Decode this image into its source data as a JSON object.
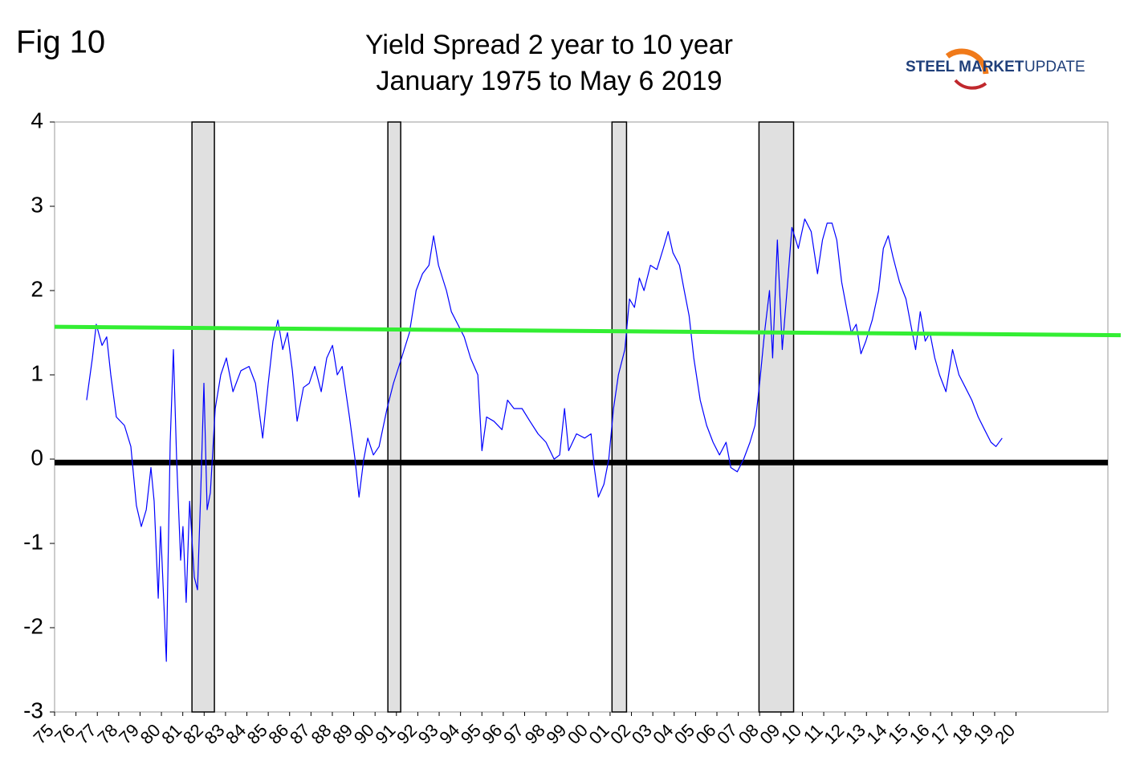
{
  "chart_data": {
    "type": "line",
    "figure_label": "Fig 10",
    "title": "Yield Spread 2 year to 10 year",
    "subtitle": "January 1975 to May 6 2019",
    "logo": {
      "bold": "STEEL MARKET",
      "text": "UPDATE"
    },
    "xlim": [
      1975,
      2024.3
    ],
    "ylim": [
      -3,
      4
    ],
    "yticks": [
      -3,
      -2,
      -1,
      0,
      1,
      2,
      3,
      4
    ],
    "xticks": [
      {
        "value": 1975,
        "label": "75"
      },
      {
        "value": 1976,
        "label": "76"
      },
      {
        "value": 1977,
        "label": "77"
      },
      {
        "value": 1978,
        "label": "78"
      },
      {
        "value": 1979,
        "label": "79"
      },
      {
        "value": 1980,
        "label": "80"
      },
      {
        "value": 1981,
        "label": "81"
      },
      {
        "value": 1982,
        "label": "82"
      },
      {
        "value": 1983,
        "label": "83"
      },
      {
        "value": 1984,
        "label": "84"
      },
      {
        "value": 1985,
        "label": "85"
      },
      {
        "value": 1986,
        "label": "86"
      },
      {
        "value": 1987,
        "label": "87"
      },
      {
        "value": 1988,
        "label": "88"
      },
      {
        "value": 1989,
        "label": "89"
      },
      {
        "value": 1990,
        "label": "90"
      },
      {
        "value": 1991,
        "label": "91"
      },
      {
        "value": 1992,
        "label": "92"
      },
      {
        "value": 1993,
        "label": "93"
      },
      {
        "value": 1994,
        "label": "94"
      },
      {
        "value": 1995,
        "label": "95"
      },
      {
        "value": 1996,
        "label": "96"
      },
      {
        "value": 1997,
        "label": "97"
      },
      {
        "value": 1998,
        "label": "98"
      },
      {
        "value": 1999,
        "label": "99"
      },
      {
        "value": 2000,
        "label": "00"
      },
      {
        "value": 2001,
        "label": "01"
      },
      {
        "value": 2002,
        "label": "02"
      },
      {
        "value": 2003,
        "label": "03"
      },
      {
        "value": 2004,
        "label": "04"
      },
      {
        "value": 2005,
        "label": "05"
      },
      {
        "value": 2006,
        "label": "06"
      },
      {
        "value": 2007,
        "label": "07"
      },
      {
        "value": 2008,
        "label": "08"
      },
      {
        "value": 2009,
        "label": "09"
      },
      {
        "value": 2010,
        "label": "10"
      },
      {
        "value": 2011,
        "label": "11"
      },
      {
        "value": 2012,
        "label": "12"
      },
      {
        "value": 2013,
        "label": "13"
      },
      {
        "value": 2014,
        "label": "14"
      },
      {
        "value": 2015,
        "label": "15"
      },
      {
        "value": 2016,
        "label": "16"
      },
      {
        "value": 2017,
        "label": "17"
      },
      {
        "value": 2018,
        "label": "18"
      },
      {
        "value": 2019,
        "label": "19"
      },
      {
        "value": 2020,
        "label": "20"
      }
    ],
    "bands": [
      {
        "start": 1981.43,
        "end": 1982.48,
        "color": "#e0e0e0"
      },
      {
        "start": 1990.6,
        "end": 1991.2,
        "color": "#e0e0e0"
      },
      {
        "start": 2001.09,
        "end": 2001.77,
        "color": "#e0e0e0"
      },
      {
        "start": 2007.97,
        "end": 2009.59,
        "color": "#e0e0e0"
      }
    ],
    "reference_line": {
      "value": -0.04,
      "color": "#000000"
    },
    "trend": {
      "x": [
        1975,
        2024.9
      ],
      "values": [
        1.57,
        1.47
      ],
      "color": "#33ee33"
    },
    "series": [
      {
        "color": "#0000ff",
        "x": [
          1976.5,
          1976.77,
          1976.95,
          1977.22,
          1977.44,
          1977.63,
          1977.89,
          1978.27,
          1978.57,
          1978.83,
          1979.06,
          1979.29,
          1979.51,
          1979.66,
          1979.85,
          1979.96,
          1980.23,
          1980.41,
          1980.56,
          1980.71,
          1980.9,
          1981.01,
          1981.16,
          1981.32,
          1981.54,
          1981.69,
          1981.84,
          1981.99,
          1982.14,
          1982.29,
          1982.52,
          1982.78,
          1983.04,
          1983.35,
          1983.72,
          1984.1,
          1984.4,
          1984.74,
          1985.0,
          1985.22,
          1985.45,
          1985.68,
          1985.9,
          1986.13,
          1986.35,
          1986.65,
          1986.92,
          1987.18,
          1987.48,
          1987.74,
          1988.01,
          1988.23,
          1988.46,
          1988.8,
          1989.06,
          1989.25,
          1989.47,
          1989.66,
          1989.92,
          1990.19,
          1990.56,
          1990.86,
          1991.24,
          1991.61,
          1991.92,
          1992.22,
          1992.52,
          1992.74,
          1992.97,
          1993.34,
          1993.57,
          1993.87,
          1994.17,
          1994.47,
          1994.81,
          1995.0,
          1995.22,
          1995.56,
          1995.94,
          1996.2,
          1996.5,
          1996.88,
          1997.25,
          1997.63,
          1998.0,
          1998.38,
          1998.64,
          1998.87,
          1999.06,
          1999.43,
          1999.81,
          2000.11,
          2000.26,
          2000.45,
          2000.71,
          2000.94,
          2001.16,
          2001.39,
          2001.69,
          2001.91,
          2002.14,
          2002.37,
          2002.59,
          2002.89,
          2003.19,
          2003.49,
          2003.72,
          2003.94,
          2004.25,
          2004.47,
          2004.7,
          2004.92,
          2005.22,
          2005.52,
          2005.82,
          2006.12,
          2006.43,
          2006.65,
          2006.95,
          2007.25,
          2007.55,
          2007.78,
          2008.0,
          2008.23,
          2008.46,
          2008.61,
          2008.83,
          2009.06,
          2009.28,
          2009.51,
          2009.81,
          2010.11,
          2010.41,
          2010.71,
          2010.94,
          2011.16,
          2011.39,
          2011.61,
          2011.84,
          2012.06,
          2012.29,
          2012.52,
          2012.74,
          2012.97,
          2013.27,
          2013.57,
          2013.79,
          2014.02,
          2014.24,
          2014.55,
          2014.85,
          2015.07,
          2015.3,
          2015.52,
          2015.75,
          2015.97,
          2016.2,
          2016.42,
          2016.72,
          2017.03,
          2017.33,
          2017.63,
          2017.93,
          2018.23,
          2018.53,
          2018.83,
          2019.06,
          2019.35
        ],
        "values": [
          0.7,
          1.2,
          1.6,
          1.35,
          1.45,
          1.0,
          0.5,
          0.4,
          0.15,
          -0.55,
          -0.8,
          -0.6,
          -0.1,
          -0.5,
          -1.65,
          -0.8,
          -2.4,
          0.2,
          1.3,
          0.0,
          -1.2,
          -0.8,
          -1.7,
          -0.5,
          -1.4,
          -1.55,
          -0.4,
          0.9,
          -0.6,
          -0.4,
          0.6,
          1.0,
          1.2,
          0.8,
          1.05,
          1.1,
          0.9,
          0.25,
          0.9,
          1.4,
          1.65,
          1.3,
          1.5,
          1.05,
          0.45,
          0.85,
          0.9,
          1.1,
          0.8,
          1.2,
          1.35,
          1.0,
          1.1,
          0.5,
          0.0,
          -0.45,
          0.0,
          0.25,
          0.05,
          0.15,
          0.6,
          0.9,
          1.2,
          1.5,
          2.0,
          2.2,
          2.3,
          2.65,
          2.3,
          2.0,
          1.75,
          1.6,
          1.45,
          1.2,
          1.0,
          0.1,
          0.5,
          0.45,
          0.35,
          0.7,
          0.6,
          0.6,
          0.45,
          0.3,
          0.2,
          0.0,
          0.05,
          0.6,
          0.1,
          0.3,
          0.25,
          0.3,
          -0.1,
          -0.45,
          -0.3,
          0.0,
          0.6,
          1.0,
          1.3,
          1.9,
          1.8,
          2.15,
          2.0,
          2.3,
          2.25,
          2.5,
          2.7,
          2.45,
          2.3,
          2.0,
          1.7,
          1.2,
          0.7,
          0.4,
          0.2,
          0.05,
          0.2,
          -0.1,
          -0.15,
          0.0,
          0.2,
          0.4,
          0.9,
          1.5,
          2.0,
          1.2,
          2.6,
          1.3,
          2.0,
          2.75,
          2.5,
          2.85,
          2.7,
          2.2,
          2.6,
          2.8,
          2.8,
          2.6,
          2.1,
          1.8,
          1.5,
          1.6,
          1.25,
          1.4,
          1.65,
          2.0,
          2.5,
          2.65,
          2.4,
          2.1,
          1.9,
          1.6,
          1.3,
          1.75,
          1.4,
          1.5,
          1.2,
          1.0,
          0.8,
          1.3,
          1.0,
          0.85,
          0.7,
          0.5,
          0.35,
          0.2,
          0.15,
          0.25
        ]
      }
    ]
  }
}
